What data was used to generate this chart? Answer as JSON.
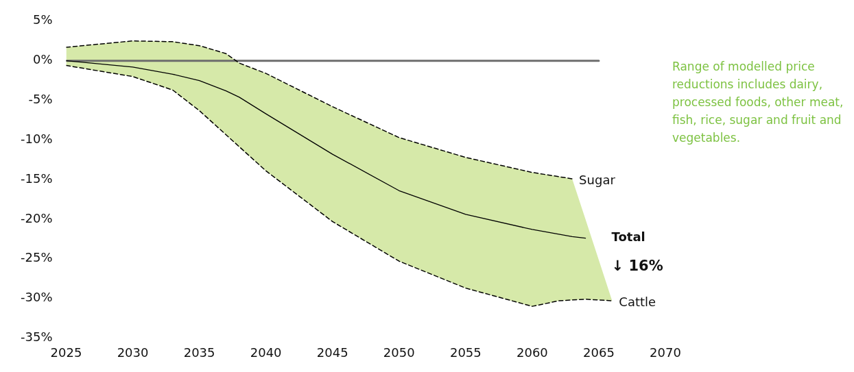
{
  "chart_data": {
    "type": "line",
    "series": [
      {
        "name": "Sugar",
        "line_style": "dashed",
        "color": "#000000",
        "x": [
          2025,
          2030,
          2033,
          2035,
          2037,
          2038,
          2040,
          2045,
          2050,
          2055,
          2060,
          2063
        ],
        "values": [
          1.7,
          2.5,
          2.4,
          1.9,
          0.9,
          -0.3,
          -1.6,
          -5.8,
          -9.7,
          -12.2,
          -14.1,
          -14.9
        ]
      },
      {
        "name": "Cattle",
        "line_style": "dashed",
        "color": "#000000",
        "x": [
          2025,
          2030,
          2033,
          2035,
          2040,
          2045,
          2050,
          2055,
          2060,
          2062,
          2064,
          2066
        ],
        "values": [
          -0.6,
          -2.0,
          -3.7,
          -6.3,
          -13.9,
          -20.3,
          -25.3,
          -28.7,
          -31.0,
          -30.3,
          -30.1,
          -30.3
        ]
      },
      {
        "line_style": "solid",
        "color": "#000000",
        "x": [
          2025,
          2030,
          2033,
          2035,
          2037,
          2038,
          2040,
          2045,
          2050,
          2055,
          2060,
          2062,
          2063,
          2064,
          2066
        ],
        "values": [
          0,
          -0.8,
          -1.7,
          -2.5,
          -3.8,
          -4.6,
          -6.7,
          -11.8,
          -16.4,
          -19.4,
          -21.3,
          -21.9,
          -22.2,
          -22.4,
          null
        ],
        "upper": [
          1.7,
          2.5,
          2.4,
          1.9,
          0.9,
          -0.3,
          -1.6,
          -5.8,
          -9.7,
          -12.2,
          -14.1,
          -14.6,
          -14.9,
          -20.0,
          -30.3
        ],
        "lower": [
          -0.6,
          -2.0,
          -3.7,
          -6.3,
          -9.3,
          -10.9,
          -13.9,
          -20.3,
          -25.3,
          -28.7,
          -31.0,
          -30.3,
          -30.2,
          -30.1,
          -30.3
        ]
      },
      {
        "line_style": "solid",
        "color": "#6d6d6d",
        "x": [
          2025,
          2065
        ],
        "values": [
          0,
          0
        ]
      }
    ],
    "xlim": [
      2025,
      2070
    ],
    "xticks": [
      2025,
      2030,
      2035,
      2040,
      2045,
      2050,
      2055,
      2060,
      2065,
      2070
    ],
    "ylim": [
      -35,
      5
    ],
    "yticks": [
      {
        "value": 5,
        "label": "5%"
      },
      {
        "value": 0,
        "label": "0%"
      },
      {
        "value": -5,
        "label": "-5%"
      },
      {
        "value": -10,
        "label": "-10%"
      },
      {
        "value": -15,
        "label": "-15%"
      },
      {
        "value": -20,
        "label": "-20%"
      },
      {
        "value": -25,
        "label": "-25%"
      },
      {
        "value": -30,
        "label": "-30%"
      },
      {
        "value": -35,
        "label": "-35%"
      }
    ],
    "grid": false,
    "legend": false,
    "marker": "none",
    "annotations": [
      {
        "text": "Total",
        "x": 2064,
        "y": -22.4
      },
      "↓ 16%",
      "Range of modelled price reductions includes dairy, processed foods, other meat, fish, rice, sugar and fruit and vegetables."
    ]
  }
}
